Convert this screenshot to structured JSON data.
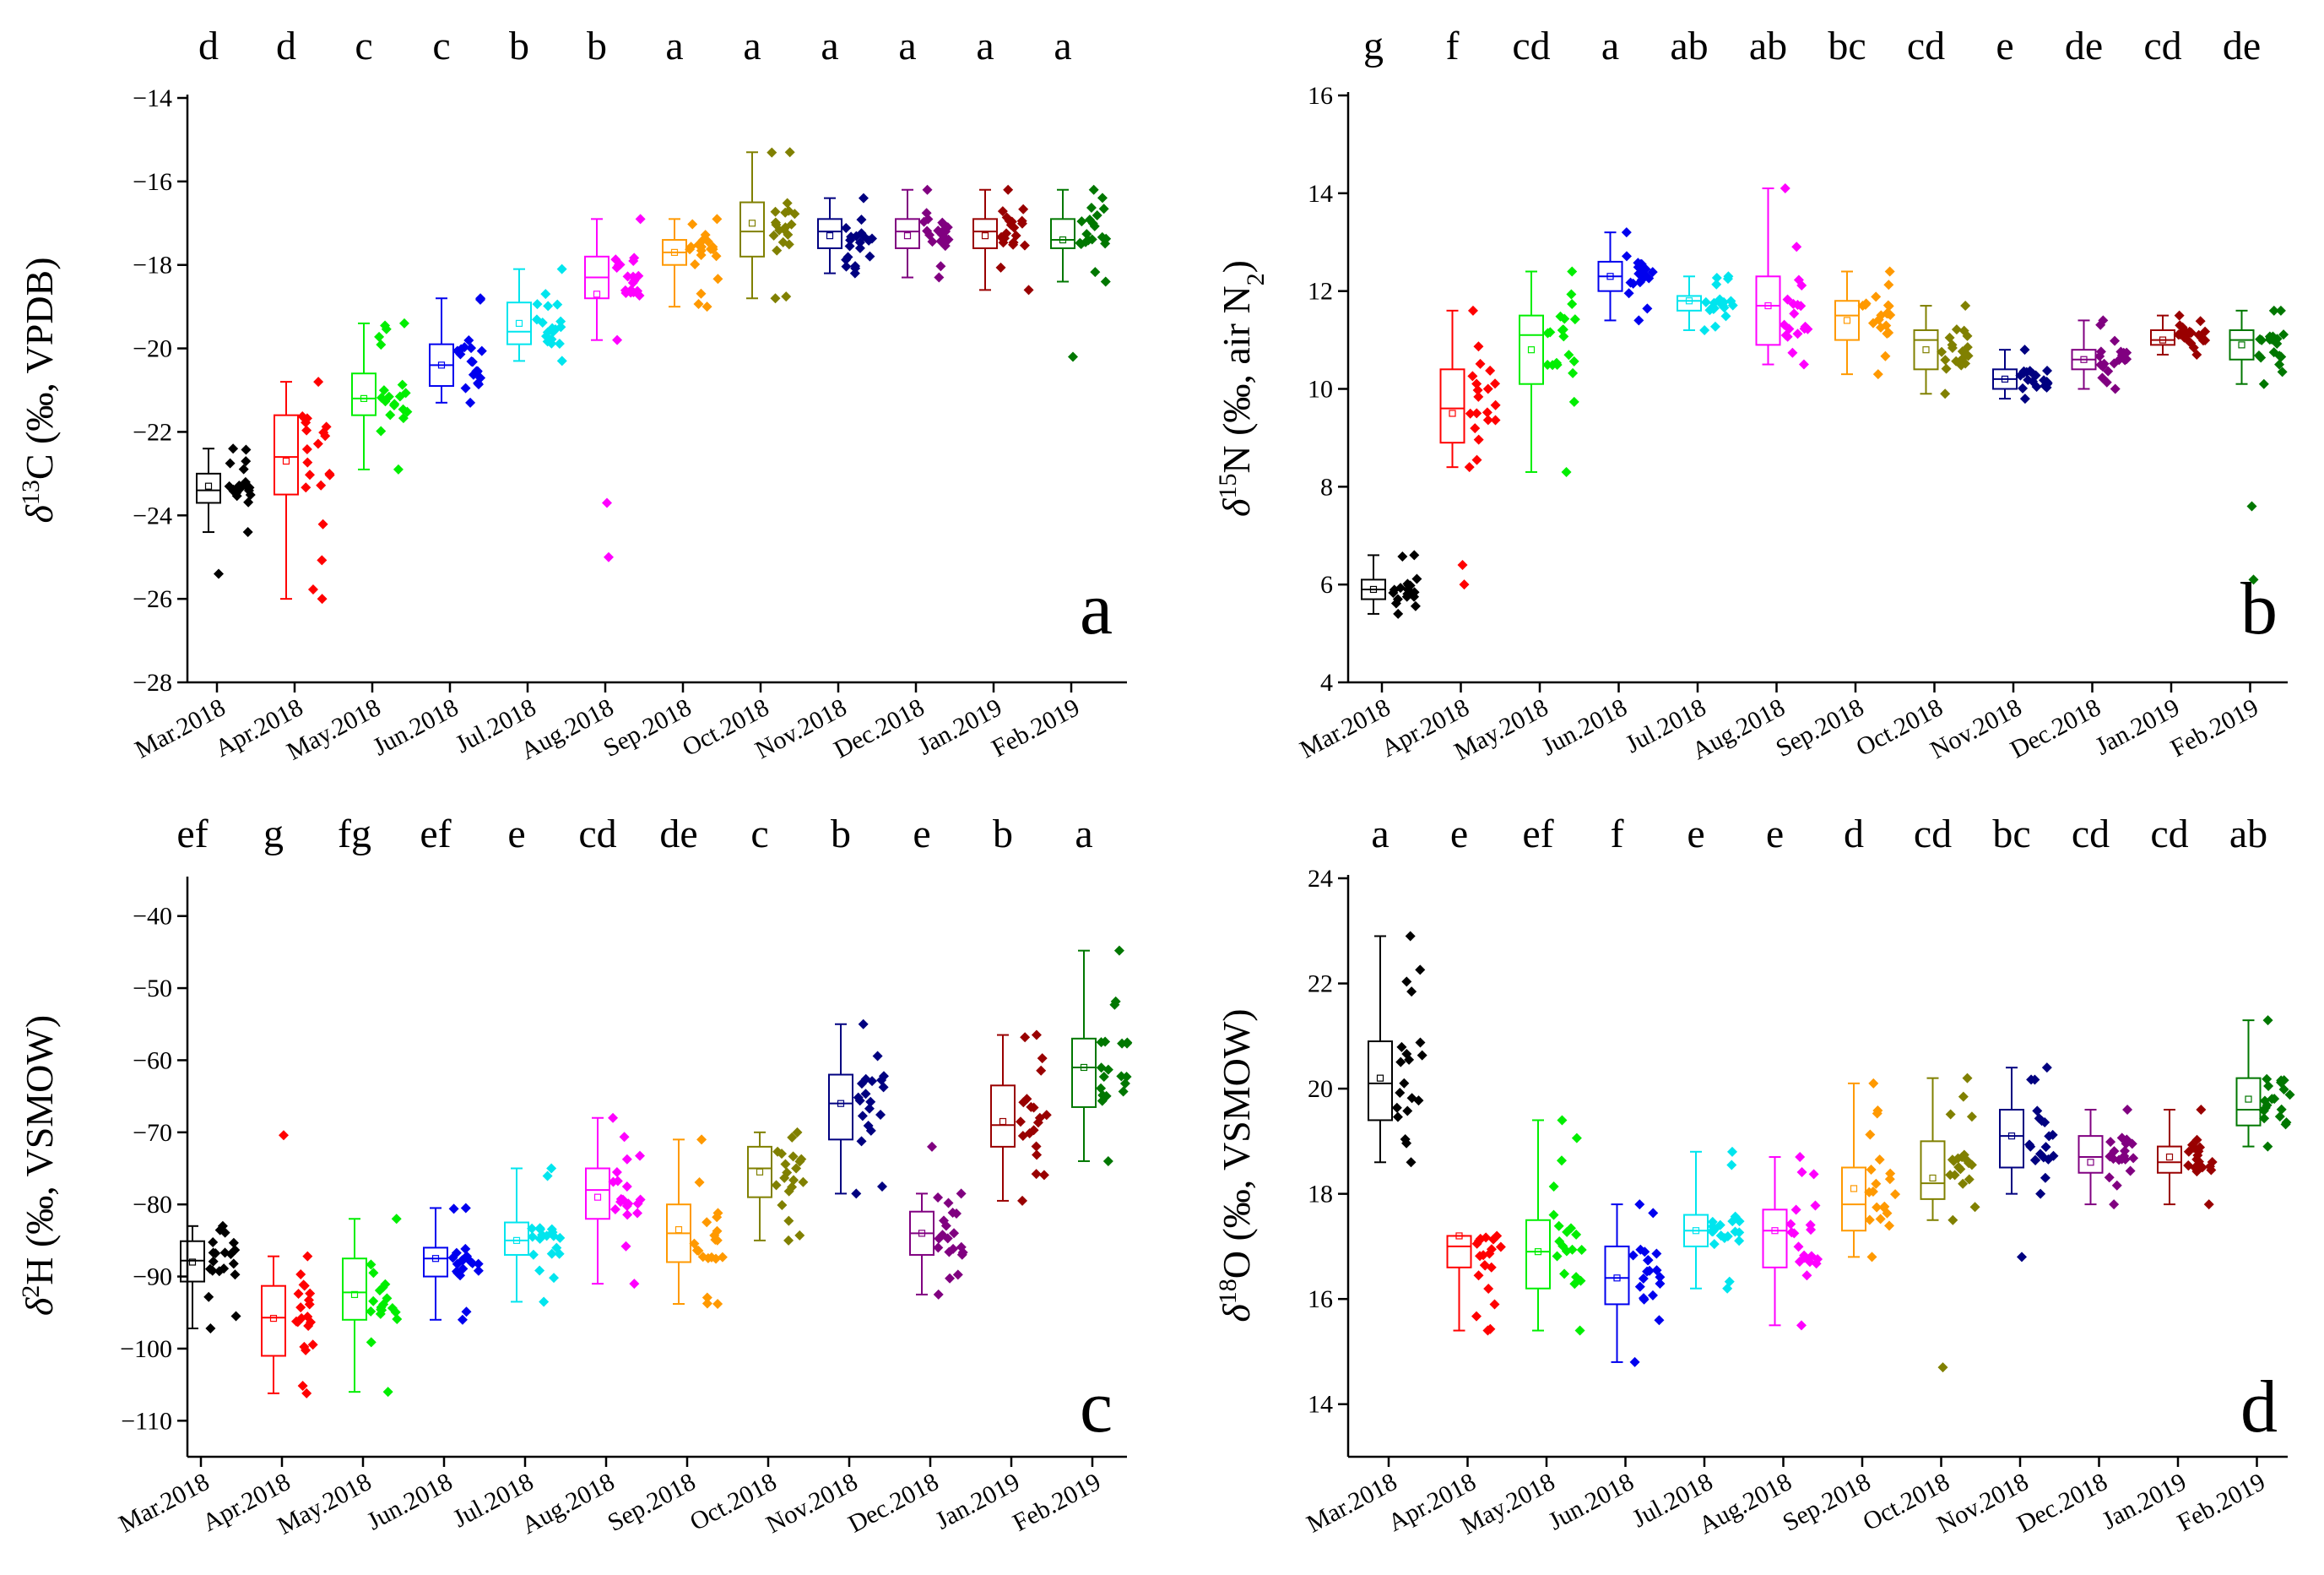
{
  "months": [
    "Mar.2018",
    "Apr.2018",
    "May.2018",
    "Jun.2018",
    "Jul.2018",
    "Aug.2018",
    "Sep.2018",
    "Oct.2018",
    "Nov.2018",
    "Dec.2018",
    "Jan.2019",
    "Feb.2019"
  ],
  "colors": [
    "#000000",
    "#ff0000",
    "#00ee00",
    "#0000ee",
    "#00e5ee",
    "#ff00ff",
    "#ff9900",
    "#808000",
    "#000080",
    "#800080",
    "#990000",
    "#007700"
  ],
  "chart_data": [
    {
      "id": "a",
      "type": "box",
      "panel_label": "a",
      "ylabel": {
        "prefix": "δ",
        "sup": "13",
        "rest": "C (‰,  VPDB)"
      },
      "ylim": [
        -28,
        -14
      ],
      "ystep": 2,
      "letters": [
        "d",
        "d",
        "c",
        "c",
        "b",
        "b",
        "a",
        "a",
        "a",
        "a",
        "a",
        "a"
      ],
      "boxes": [
        {
          "min": -24.4,
          "q1": -23.7,
          "median": -23.4,
          "q3": -23.0,
          "max": -22.4,
          "mean": -23.3
        },
        {
          "min": -26.0,
          "q1": -23.5,
          "median": -22.6,
          "q3": -21.6,
          "max": -20.8,
          "mean": -22.7
        },
        {
          "min": -22.9,
          "q1": -21.6,
          "median": -21.2,
          "q3": -20.6,
          "max": -19.4,
          "mean": -21.2
        },
        {
          "min": -21.3,
          "q1": -20.9,
          "median": -20.4,
          "q3": -19.9,
          "max": -18.8,
          "mean": -20.4
        },
        {
          "min": -20.3,
          "q1": -19.9,
          "median": -19.6,
          "q3": -18.9,
          "max": -18.1,
          "mean": -19.4
        },
        {
          "min": -19.8,
          "q1": -18.8,
          "median": -18.3,
          "q3": -17.8,
          "max": -16.9,
          "mean": -18.7
        },
        {
          "min": -19.0,
          "q1": -18.0,
          "median": -17.7,
          "q3": -17.4,
          "max": -16.9,
          "mean": -17.7
        },
        {
          "min": -18.8,
          "q1": -17.8,
          "median": -17.2,
          "q3": -16.5,
          "max": -15.3,
          "mean": -17.0
        },
        {
          "min": -18.2,
          "q1": -17.6,
          "median": -17.2,
          "q3": -16.9,
          "max": -16.4,
          "mean": -17.3
        },
        {
          "min": -18.3,
          "q1": -17.6,
          "median": -17.2,
          "q3": -16.9,
          "max": -16.2,
          "mean": -17.3
        },
        {
          "min": -18.6,
          "q1": -17.6,
          "median": -17.2,
          "q3": -16.9,
          "max": -16.2,
          "mean": -17.3
        },
        {
          "min": -18.4,
          "q1": -17.6,
          "median": -17.4,
          "q3": -16.9,
          "max": -16.2,
          "mean": -17.4
        }
      ],
      "outliers": [
        [
          -25.4
        ],
        [],
        [],
        [],
        [],
        [
          -23.7,
          -25.0
        ],
        [],
        [],
        [],
        [],
        [],
        [
          -20.2
        ]
      ]
    },
    {
      "id": "b",
      "type": "box",
      "panel_label": "b",
      "ylabel": {
        "prefix": "δ",
        "sup": "15",
        "rest": "N (‰,  air N",
        "sub": "2",
        "end": ")"
      },
      "ylim": [
        4,
        16
      ],
      "ystep": 2,
      "letters": [
        "g",
        "f",
        "cd",
        "a",
        "ab",
        "ab",
        "bc",
        "cd",
        "e",
        "de",
        "cd",
        "de"
      ],
      "boxes": [
        {
          "min": 5.4,
          "q1": 5.7,
          "median": 5.9,
          "q3": 6.1,
          "max": 6.6,
          "mean": 5.9
        },
        {
          "min": 8.4,
          "q1": 8.9,
          "median": 9.6,
          "q3": 10.4,
          "max": 11.6,
          "mean": 9.5
        },
        {
          "min": 8.3,
          "q1": 10.1,
          "median": 11.1,
          "q3": 11.5,
          "max": 12.4,
          "mean": 10.8
        },
        {
          "min": 11.4,
          "q1": 12.0,
          "median": 12.3,
          "q3": 12.6,
          "max": 13.2,
          "mean": 12.3
        },
        {
          "min": 11.2,
          "q1": 11.6,
          "median": 11.8,
          "q3": 11.9,
          "max": 12.3,
          "mean": 11.8
        },
        {
          "min": 10.5,
          "q1": 10.9,
          "median": 11.7,
          "q3": 12.3,
          "max": 14.1,
          "mean": 11.7
        },
        {
          "min": 10.3,
          "q1": 11.0,
          "median": 11.5,
          "q3": 11.8,
          "max": 12.4,
          "mean": 11.4
        },
        {
          "min": 9.9,
          "q1": 10.4,
          "median": 11.0,
          "q3": 11.2,
          "max": 11.7,
          "mean": 10.8
        },
        {
          "min": 9.8,
          "q1": 10.0,
          "median": 10.2,
          "q3": 10.4,
          "max": 10.8,
          "mean": 10.2
        },
        {
          "min": 10.0,
          "q1": 10.4,
          "median": 10.6,
          "q3": 10.8,
          "max": 11.4,
          "mean": 10.6
        },
        {
          "min": 10.7,
          "q1": 10.9,
          "median": 11.0,
          "q3": 11.2,
          "max": 11.5,
          "mean": 11.0
        },
        {
          "min": 10.1,
          "q1": 10.6,
          "median": 11.0,
          "q3": 11.2,
          "max": 11.6,
          "mean": 10.9
        }
      ],
      "outliers": [
        [],
        [
          6.4,
          6.0
        ],
        [],
        [],
        [],
        [],
        [],
        [],
        [],
        [],
        [],
        [
          7.6,
          6.1
        ]
      ]
    },
    {
      "id": "c",
      "type": "box",
      "panel_label": "c",
      "ylabel": {
        "prefix": "δ",
        "sup": "2",
        "rest": "H (‰, VSMOW)"
      },
      "ylim": [
        -115,
        -35
      ],
      "ystep": 10,
      "ytick_start": -110,
      "ytick_end": -40,
      "letters": [
        "ef",
        "g",
        "fg",
        "ef",
        "e",
        "cd",
        "de",
        "c",
        "b",
        "e",
        "b",
        "a"
      ],
      "boxes": [
        {
          "min": -97.2,
          "q1": -90.7,
          "median": -87.8,
          "q3": -85.1,
          "max": -83.0,
          "mean": -88.0
        },
        {
          "min": -106.2,
          "q1": -101.0,
          "median": -95.7,
          "q3": -91.3,
          "max": -87.2,
          "mean": -95.8
        },
        {
          "min": -106.0,
          "q1": -96.0,
          "median": -92.2,
          "q3": -87.5,
          "max": -82.0,
          "mean": -92.5
        },
        {
          "min": -96.0,
          "q1": -90.0,
          "median": -87.5,
          "q3": -86.0,
          "max": -80.5,
          "mean": -87.5
        },
        {
          "min": -93.5,
          "q1": -87.0,
          "median": -85.0,
          "q3": -82.5,
          "max": -75.0,
          "mean": -85.0
        },
        {
          "min": -91.0,
          "q1": -82.0,
          "median": -78.0,
          "q3": -75.0,
          "max": -68.0,
          "mean": -79.0
        },
        {
          "min": -93.8,
          "q1": -88.0,
          "median": -84.0,
          "q3": -80.0,
          "max": -71.0,
          "mean": -83.5
        },
        {
          "min": -85.0,
          "q1": -79.0,
          "median": -75.0,
          "q3": -72.0,
          "max": -70.0,
          "mean": -75.5
        },
        {
          "min": -78.5,
          "q1": -71.0,
          "median": -66.0,
          "q3": -62.0,
          "max": -55.0,
          "mean": -66.0
        },
        {
          "min": -92.5,
          "q1": -87.0,
          "median": -84.0,
          "q3": -81.0,
          "max": -78.5,
          "mean": -84.0
        },
        {
          "min": -79.5,
          "q1": -72.0,
          "median": -69.0,
          "q3": -63.5,
          "max": -56.5,
          "mean": -68.5
        },
        {
          "min": -74.0,
          "q1": -66.5,
          "median": -61.0,
          "q3": -57.0,
          "max": -44.8,
          "mean": -61.0
        }
      ],
      "outliers": [
        [],
        [
          -70.4
        ],
        [],
        [],
        [],
        [],
        [],
        [],
        [],
        [
          -72.0
        ],
        [],
        []
      ]
    },
    {
      "id": "d",
      "type": "box",
      "panel_label": "d",
      "ylabel": {
        "prefix": "δ",
        "sup": "18",
        "rest": "O (‰, VSMOW)"
      },
      "ylim": [
        13,
        24
      ],
      "ystep": 2,
      "ytick_start": 14,
      "ytick_end": 24,
      "letters": [
        "a",
        "e",
        "ef",
        "f",
        "e",
        "e",
        "d",
        "cd",
        "bc",
        "cd",
        "cd",
        "ab"
      ],
      "boxes": [
        {
          "min": 18.6,
          "q1": 19.4,
          "median": 20.1,
          "q3": 20.9,
          "max": 22.9,
          "mean": 20.2
        },
        {
          "min": 15.4,
          "q1": 16.6,
          "median": 17.0,
          "q3": 17.2,
          "max": 17.2,
          "mean": 17.2
        },
        {
          "min": 15.4,
          "q1": 16.2,
          "median": 16.9,
          "q3": 17.5,
          "max": 19.4,
          "mean": 16.9
        },
        {
          "min": 14.8,
          "q1": 15.9,
          "median": 16.4,
          "q3": 17.0,
          "max": 17.8,
          "mean": 16.4
        },
        {
          "min": 16.2,
          "q1": 17.0,
          "median": 17.3,
          "q3": 17.6,
          "max": 18.8,
          "mean": 17.3
        },
        {
          "min": 15.5,
          "q1": 16.6,
          "median": 17.3,
          "q3": 17.7,
          "max": 18.7,
          "mean": 17.3
        },
        {
          "min": 16.8,
          "q1": 17.3,
          "median": 17.8,
          "q3": 18.5,
          "max": 20.1,
          "mean": 18.1
        },
        {
          "min": 17.5,
          "q1": 17.9,
          "median": 18.2,
          "q3": 19.0,
          "max": 20.2,
          "mean": 18.3
        },
        {
          "min": 18.0,
          "q1": 18.5,
          "median": 19.1,
          "q3": 19.6,
          "max": 20.4,
          "mean": 19.1
        },
        {
          "min": 17.8,
          "q1": 18.4,
          "median": 18.7,
          "q3": 19.1,
          "max": 19.6,
          "mean": 18.6
        },
        {
          "min": 17.8,
          "q1": 18.4,
          "median": 18.6,
          "q3": 18.9,
          "max": 19.6,
          "mean": 18.7
        },
        {
          "min": 18.9,
          "q1": 19.3,
          "median": 19.6,
          "q3": 20.2,
          "max": 21.3,
          "mean": 19.8
        }
      ],
      "outliers": [
        [],
        [],
        [],
        [],
        [],
        [],
        [],
        [
          14.7
        ],
        [
          16.8
        ],
        [],
        [],
        []
      ]
    }
  ]
}
